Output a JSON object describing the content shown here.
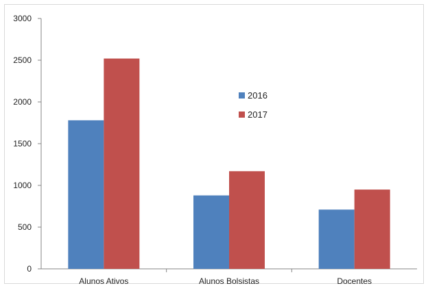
{
  "chart_data": {
    "type": "bar",
    "categories": [
      "Alunos Ativos",
      "Alunos Bolsistas",
      "Docentes"
    ],
    "series": [
      {
        "name": "2016",
        "values": [
          1780,
          880,
          710
        ],
        "color": "#4f81bd"
      },
      {
        "name": "2017",
        "values": [
          2520,
          1170,
          950
        ],
        "color": "#c0504d"
      }
    ],
    "ylim": [
      0,
      3000
    ],
    "yticks": [
      0,
      500,
      1000,
      1500,
      2000,
      2500,
      3000
    ],
    "grid": false,
    "legend_position": "center-right",
    "title": "",
    "xlabel": "",
    "ylabel": ""
  }
}
